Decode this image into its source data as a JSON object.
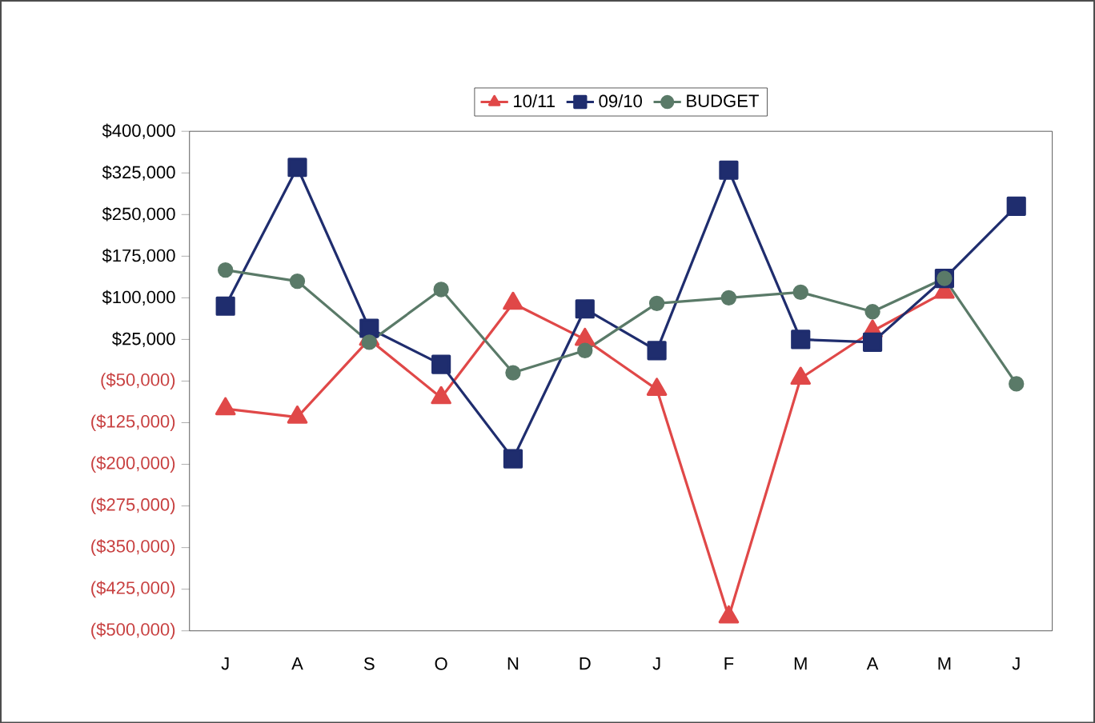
{
  "chart_data": {
    "type": "line",
    "categories": [
      "J",
      "A",
      "S",
      "O",
      "N",
      "D",
      "J",
      "F",
      "M",
      "A",
      "M",
      "J"
    ],
    "series": [
      {
        "name": "10/11",
        "color": "#e04848",
        "marker": "triangle",
        "values": [
          -100000,
          -115000,
          25000,
          -80000,
          90000,
          25000,
          -65000,
          -475000,
          -45000,
          40000,
          110000,
          null
        ]
      },
      {
        "name": "09/10",
        "color": "#1f2d6e",
        "marker": "square",
        "values": [
          85000,
          335000,
          45000,
          -20000,
          -190000,
          80000,
          5000,
          330000,
          25000,
          20000,
          135000,
          265000
        ]
      },
      {
        "name": "BUDGET",
        "color": "#5a7a68",
        "marker": "circle",
        "values": [
          150000,
          130000,
          20000,
          115000,
          -35000,
          5000,
          90000,
          100000,
          110000,
          75000,
          135000,
          -55000
        ]
      }
    ],
    "ylim": [
      -500000,
      400000
    ],
    "yticks": [
      {
        "value": 400000,
        "label": "$400,000"
      },
      {
        "value": 325000,
        "label": "$325,000"
      },
      {
        "value": 250000,
        "label": "$250,000"
      },
      {
        "value": 175000,
        "label": "$175,000"
      },
      {
        "value": 100000,
        "label": "$100,000"
      },
      {
        "value": 25000,
        "label": "$25,000"
      },
      {
        "value": -50000,
        "label": "($50,000)"
      },
      {
        "value": -125000,
        "label": "($125,000)"
      },
      {
        "value": -200000,
        "label": "($200,000)"
      },
      {
        "value": -275000,
        "label": "($275,000)"
      },
      {
        "value": -350000,
        "label": "($350,000)"
      },
      {
        "value": -425000,
        "label": "($425,000)"
      },
      {
        "value": -500000,
        "label": "($500,000)"
      }
    ],
    "grid": false,
    "legend": "top",
    "line_style": "solid"
  }
}
